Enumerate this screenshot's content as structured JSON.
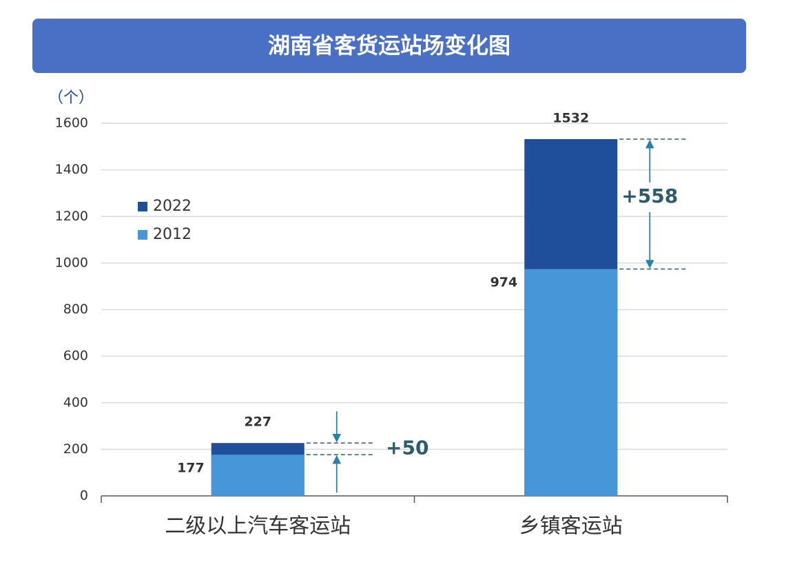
{
  "chart_data": {
    "type": "overlap-bar",
    "title": "湖南省客货运站场变化图",
    "unit_label": "（个）",
    "categories": [
      "二级以上汽车客运站",
      "乡镇客运站"
    ],
    "series": [
      {
        "name": "2022",
        "color": "#1f4e9a",
        "values": [
          227,
          1532
        ]
      },
      {
        "name": "2012",
        "color": "#4796d8",
        "values": [
          177,
          974
        ]
      }
    ],
    "ylim": [
      0,
      1600
    ],
    "yticks": [
      0,
      200,
      400,
      600,
      800,
      1000,
      1200,
      1400,
      1600
    ],
    "grid": true,
    "annotations": [
      {
        "text": "+50"
      },
      {
        "text": "+558"
      }
    ]
  }
}
